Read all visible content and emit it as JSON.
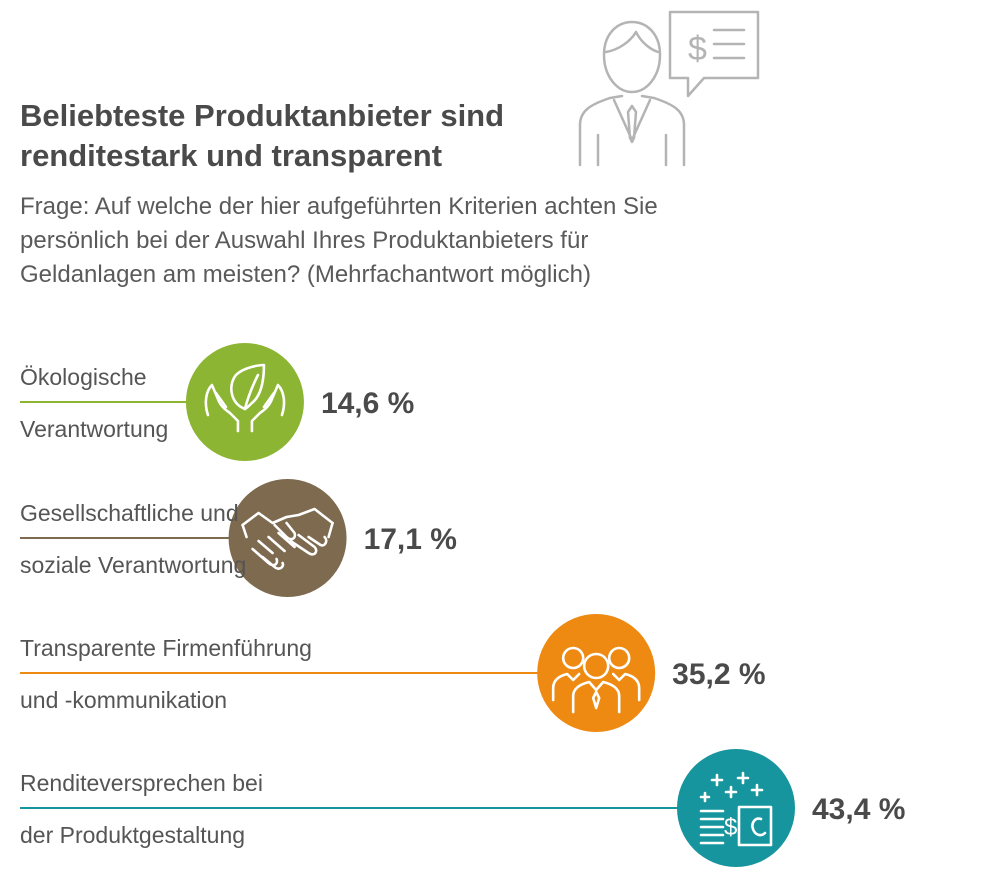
{
  "header": {
    "title": "Beliebteste Produktanbieter sind renditestark und transparent",
    "question": "Frage: Auf welche der hier aufgeführten Kriterien achten Sie persönlich bei der Auswahl Ihres Produktanbieters für Geldanlagen am meisten? (Mehrfachantwort möglich)",
    "illustration_icon": "businessman-with-speech-bubble-icon"
  },
  "chart_data": {
    "type": "bar",
    "title": "Beliebteste Produktanbieter sind renditestark und transparent",
    "subtitle": "Frage: Auf welche der hier aufgeführten Kriterien achten Sie persönlich bei der Auswahl Ihres Produktanbieters für Geldanlagen am meisten? (Mehrfachantwort möglich)",
    "orientation": "horizontal",
    "value_unit": "%",
    "xlim": [
      0,
      43.4
    ],
    "grid": false,
    "categories": [
      "Ökologische Verantwortung",
      "Gesellschaftliche und soziale Verantwortung",
      "Transparente Firmenführung und -kommunikation",
      "Renditeversprechen bei der Produktgestaltung"
    ],
    "values": [
      14.6,
      17.1,
      35.2,
      43.4
    ],
    "items": [
      {
        "label_line1": "Ökologische",
        "label_line2": "Verantwortung",
        "value": 14.6,
        "value_label": "14,6 %",
        "color": "#8cb533",
        "icon": "hands-with-leaf-icon"
      },
      {
        "label_line1": "Gesellschaftliche und",
        "label_line2": "soziale Verantwortung",
        "value": 17.1,
        "value_label": "17,1 %",
        "color": "#7d6a4f",
        "icon": "handshake-icon"
      },
      {
        "label_line1": "Transparente Firmenführung",
        "label_line2": "und -kommunikation",
        "value": 35.2,
        "value_label": "35,2 %",
        "color": "#ee8a12",
        "icon": "team-icon"
      },
      {
        "label_line1": "Renditeversprechen bei",
        "label_line2": "der Produktgestaltung",
        "value": 43.4,
        "value_label": "43,4 %",
        "color": "#17959e",
        "icon": "money-document-icon"
      }
    ]
  }
}
